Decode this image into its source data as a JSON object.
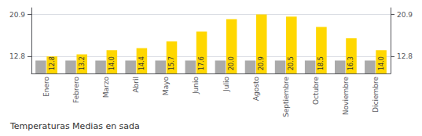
{
  "chart_data": {
    "type": "bar",
    "title": "Temperaturas Medias en sada",
    "categories": [
      "Enero",
      "Febrero",
      "Marzo",
      "Abril",
      "Mayo",
      "Junio",
      "Julio",
      "Agosto",
      "Septiembre",
      "Octubre",
      "Noviembre",
      "Diciembre"
    ],
    "series": [
      {
        "color": "#AAAAAA",
        "values": [
          12.0,
          12.0,
          12.0,
          12.0,
          12.0,
          12.0,
          12.0,
          12.0,
          12.0,
          12.0,
          12.0,
          12.0
        ]
      },
      {
        "color": "#FFD700",
        "values": [
          12.8,
          13.2,
          14.0,
          14.4,
          15.7,
          17.6,
          20.0,
          20.9,
          20.5,
          18.5,
          16.3,
          14.0
        ],
        "data_labels": true,
        "value_labels": [
          "12.8",
          "13.2",
          "14.0",
          "14.4",
          "15.7",
          "17.6",
          "20.0",
          "20.9",
          "20.5",
          "18.5",
          "16.3",
          "14.0"
        ]
      }
    ],
    "ylim": [
      9.5,
      22.2
    ],
    "yticks": [
      12.8,
      20.9
    ],
    "y2lim": [
      9.5,
      22.2
    ],
    "y2ticks": [
      12.8,
      20.9
    ],
    "grid": true
  }
}
